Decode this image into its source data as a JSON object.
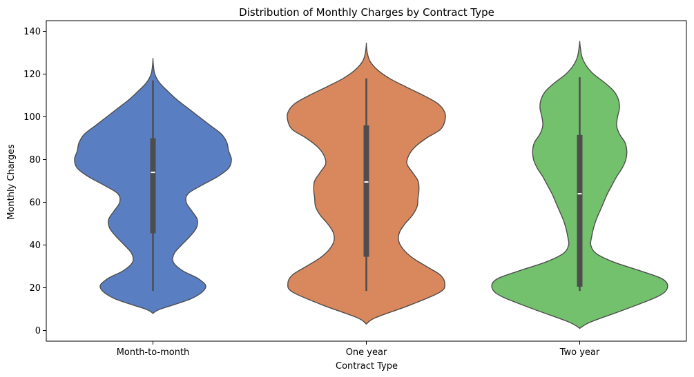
{
  "chart_data": {
    "type": "violin",
    "title": "Distribution of Monthly Charges by Contract Type",
    "xlabel": "Contract Type",
    "ylabel": "Monthly Charges",
    "ylim": [
      -5,
      145
    ],
    "yticks": [
      0,
      20,
      40,
      60,
      80,
      100,
      120,
      140
    ],
    "grid": false,
    "legend": "none",
    "categories": [
      "Month-to-month",
      "One year",
      "Two year"
    ],
    "colors": [
      "#5a7ec2",
      "#d9875d",
      "#73c06d"
    ],
    "edge_color": "#4d4d4d",
    "box_color": "#4d4d4d",
    "median_color": "#ffffff",
    "violins": [
      {
        "category": "Month-to-month",
        "min": 18.5,
        "q1": 45.5,
        "median": 74.0,
        "q3": 90.0,
        "max": 117.0,
        "range": [
          8,
          127
        ],
        "density": [
          [
            8,
            0.0
          ],
          [
            10,
            0.08
          ],
          [
            15,
            0.42
          ],
          [
            20,
            0.57
          ],
          [
            24,
            0.5
          ],
          [
            28,
            0.32
          ],
          [
            32,
            0.22
          ],
          [
            36,
            0.23
          ],
          [
            40,
            0.31
          ],
          [
            44,
            0.4
          ],
          [
            48,
            0.47
          ],
          [
            52,
            0.48
          ],
          [
            56,
            0.42
          ],
          [
            60,
            0.36
          ],
          [
            64,
            0.38
          ],
          [
            68,
            0.53
          ],
          [
            72,
            0.7
          ],
          [
            76,
            0.82
          ],
          [
            80,
            0.85
          ],
          [
            84,
            0.82
          ],
          [
            88,
            0.8
          ],
          [
            92,
            0.74
          ],
          [
            96,
            0.62
          ],
          [
            100,
            0.5
          ],
          [
            104,
            0.38
          ],
          [
            108,
            0.26
          ],
          [
            112,
            0.16
          ],
          [
            116,
            0.07
          ],
          [
            120,
            0.02
          ],
          [
            124,
            0.005
          ],
          [
            127,
            0.0
          ]
        ]
      },
      {
        "category": "One year",
        "min": 18.5,
        "q1": 34.5,
        "median": 69.5,
        "q3": 96.0,
        "max": 118.0,
        "range": [
          3,
          134
        ],
        "density": [
          [
            3,
            0.0
          ],
          [
            6,
            0.1
          ],
          [
            12,
            0.48
          ],
          [
            18,
            0.8
          ],
          [
            22,
            0.85
          ],
          [
            26,
            0.8
          ],
          [
            30,
            0.65
          ],
          [
            34,
            0.5
          ],
          [
            38,
            0.4
          ],
          [
            42,
            0.35
          ],
          [
            46,
            0.36
          ],
          [
            50,
            0.42
          ],
          [
            54,
            0.5
          ],
          [
            58,
            0.55
          ],
          [
            62,
            0.56
          ],
          [
            66,
            0.57
          ],
          [
            70,
            0.56
          ],
          [
            74,
            0.5
          ],
          [
            78,
            0.44
          ],
          [
            82,
            0.46
          ],
          [
            86,
            0.53
          ],
          [
            90,
            0.65
          ],
          [
            94,
            0.8
          ],
          [
            98,
            0.85
          ],
          [
            102,
            0.85
          ],
          [
            106,
            0.78
          ],
          [
            110,
            0.62
          ],
          [
            114,
            0.43
          ],
          [
            118,
            0.25
          ],
          [
            122,
            0.12
          ],
          [
            126,
            0.04
          ],
          [
            130,
            0.01
          ],
          [
            134,
            0.0
          ]
        ]
      },
      {
        "category": "Two year",
        "min": 18.5,
        "q1": 20.5,
        "median": 64.0,
        "q3": 91.5,
        "max": 118.5,
        "range": [
          1,
          135
        ],
        "density": [
          [
            1,
            0.0
          ],
          [
            4,
            0.12
          ],
          [
            10,
            0.5
          ],
          [
            16,
            0.85
          ],
          [
            20,
            0.95
          ],
          [
            24,
            0.9
          ],
          [
            28,
            0.65
          ],
          [
            32,
            0.37
          ],
          [
            36,
            0.18
          ],
          [
            40,
            0.12
          ],
          [
            44,
            0.13
          ],
          [
            48,
            0.15
          ],
          [
            52,
            0.18
          ],
          [
            56,
            0.22
          ],
          [
            60,
            0.26
          ],
          [
            64,
            0.3
          ],
          [
            68,
            0.35
          ],
          [
            72,
            0.4
          ],
          [
            76,
            0.46
          ],
          [
            80,
            0.5
          ],
          [
            84,
            0.51
          ],
          [
            88,
            0.49
          ],
          [
            92,
            0.43
          ],
          [
            96,
            0.4
          ],
          [
            100,
            0.41
          ],
          [
            104,
            0.43
          ],
          [
            108,
            0.42
          ],
          [
            112,
            0.37
          ],
          [
            116,
            0.27
          ],
          [
            120,
            0.15
          ],
          [
            124,
            0.07
          ],
          [
            128,
            0.025
          ],
          [
            132,
            0.008
          ],
          [
            135,
            0.0
          ]
        ]
      }
    ]
  }
}
